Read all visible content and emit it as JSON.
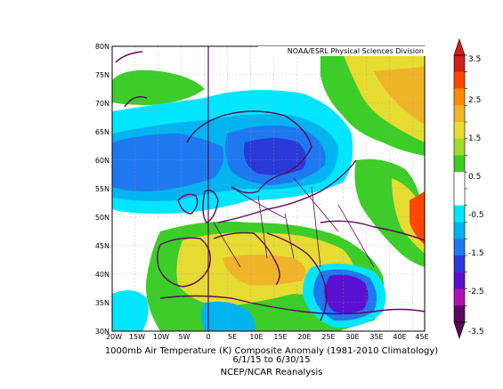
{
  "map": {
    "source_label": "NOAA/ESRL Physical Sciences Division",
    "lat_ticks": [
      "80N",
      "75N",
      "70N",
      "65N",
      "60N",
      "55N",
      "50N",
      "45N",
      "40N",
      "35N",
      "30N"
    ],
    "lon_ticks": [
      "20W",
      "15W",
      "10W",
      "5W",
      "0",
      "5E",
      "10E",
      "15E",
      "20E",
      "25E",
      "30E",
      "35E",
      "40E",
      "45E"
    ],
    "colorbar": {
      "labels": [
        "3.5",
        "2.5",
        "1.5",
        "0.5",
        "-0.5",
        "-1.5",
        "-2.5",
        "-3.5"
      ],
      "bands": [
        "#5a0a5c",
        "#b010b0",
        "#5a10d0",
        "#2a3ad8",
        "#1e78f0",
        "#00b4f0",
        "#00e6ff",
        "#ffffff",
        "#ffffff",
        "#3ccd28",
        "#a0dc28",
        "#e6dc32",
        "#f0b428",
        "#ff8c00",
        "#ff4600",
        "#d21e1e"
      ]
    },
    "caption_line1": "1000mb Air Temperature (K) Composite Anomaly (1981-2010 Climatology)",
    "caption_line2": "6/1/15  to 6/30/15",
    "caption_line3": "NCEP/NCAR Reanalysis"
  }
}
